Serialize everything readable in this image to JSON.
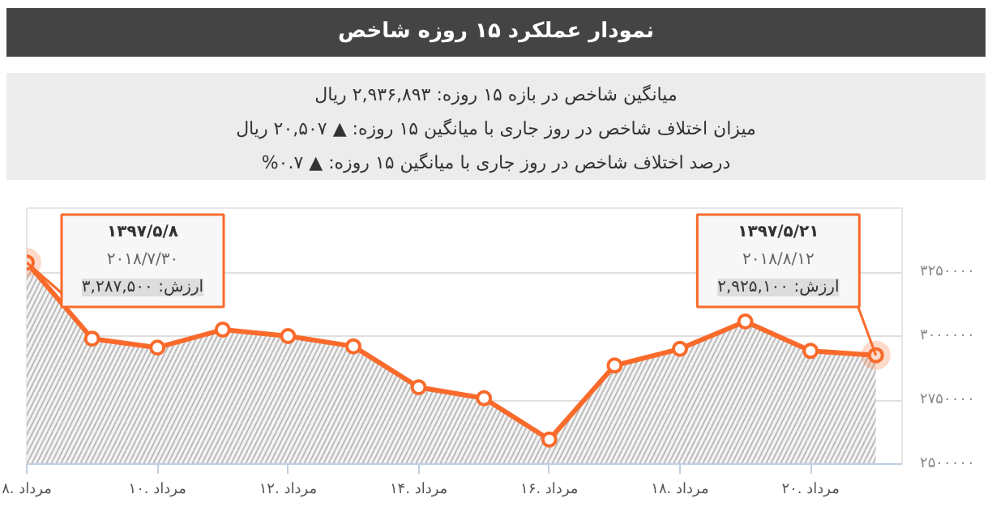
{
  "chart_data": {
    "type": "area",
    "title": "نمودار عملکرد ۱۵ روزه شاخص",
    "annotations": [
      "میانگین شاخص در بازه ۱۵ روزه: ۲,۹۳۶,۸۹۳ ریال",
      "میزان اختلاف شاخص در روز جاری با میانگین ۱۵ روزه: ▲ ۲۰,۵۰۷ ریال",
      "درصد اختلاف شاخص در روز جاری با میانگین ۱۵ روزه: ▲ ۰.۷%",
      "۱۳۹۷/۵/۸",
      "۲۰۱۸/۷/۳۰",
      {
        "text": "ارزش: ۳,۲۸۷,۵۰۰",
        "x": 8,
        "y": 3287500
      },
      "۱۳۹۷/۵/۲۱",
      "۲۰۱۸/۸/۱۲",
      {
        "text": "ارزش: ۲,۹۲۵,۱۰۰",
        "x": 21,
        "y": 2925100
      }
    ],
    "x": [
      8,
      9,
      10,
      11,
      12,
      13,
      14,
      15,
      16,
      17,
      18,
      19,
      20,
      21
    ],
    "series": [
      {
        "color": "#f96a2b",
        "values": [
          3287500,
          2990000,
          2955000,
          3025000,
          3000000,
          2960000,
          2800000,
          2757000,
          2596000,
          2885000,
          2950000,
          3057000,
          2942000,
          2925100
        ]
      }
    ],
    "xlim": [
      8,
      21.4
    ],
    "xticks": [
      {
        "value": 8,
        "label": "۸. مرداد"
      },
      {
        "value": 10,
        "label": "۱۰. مرداد"
      },
      {
        "value": 12,
        "label": "۱۲. مرداد"
      },
      {
        "value": 14,
        "label": "۱۴. مرداد"
      },
      {
        "value": 16,
        "label": "۱۶. مرداد"
      },
      {
        "value": 18,
        "label": "۱۸. مرداد"
      },
      {
        "value": 20,
        "label": "۲۰. مرداد"
      }
    ],
    "ylim": [
      2500000,
      3500000
    ],
    "yticks": [
      {
        "value": 2500000,
        "label": "۲۵۰۰۰۰۰"
      },
      {
        "value": 2750000,
        "label": "۲۷۵۰۰۰۰"
      },
      {
        "value": 3000000,
        "label": "۳۰۰۰۰۰۰"
      },
      {
        "value": 3250000,
        "label": "۳۲۵۰۰۰۰"
      }
    ],
    "grid": "y",
    "marker": "circle"
  }
}
